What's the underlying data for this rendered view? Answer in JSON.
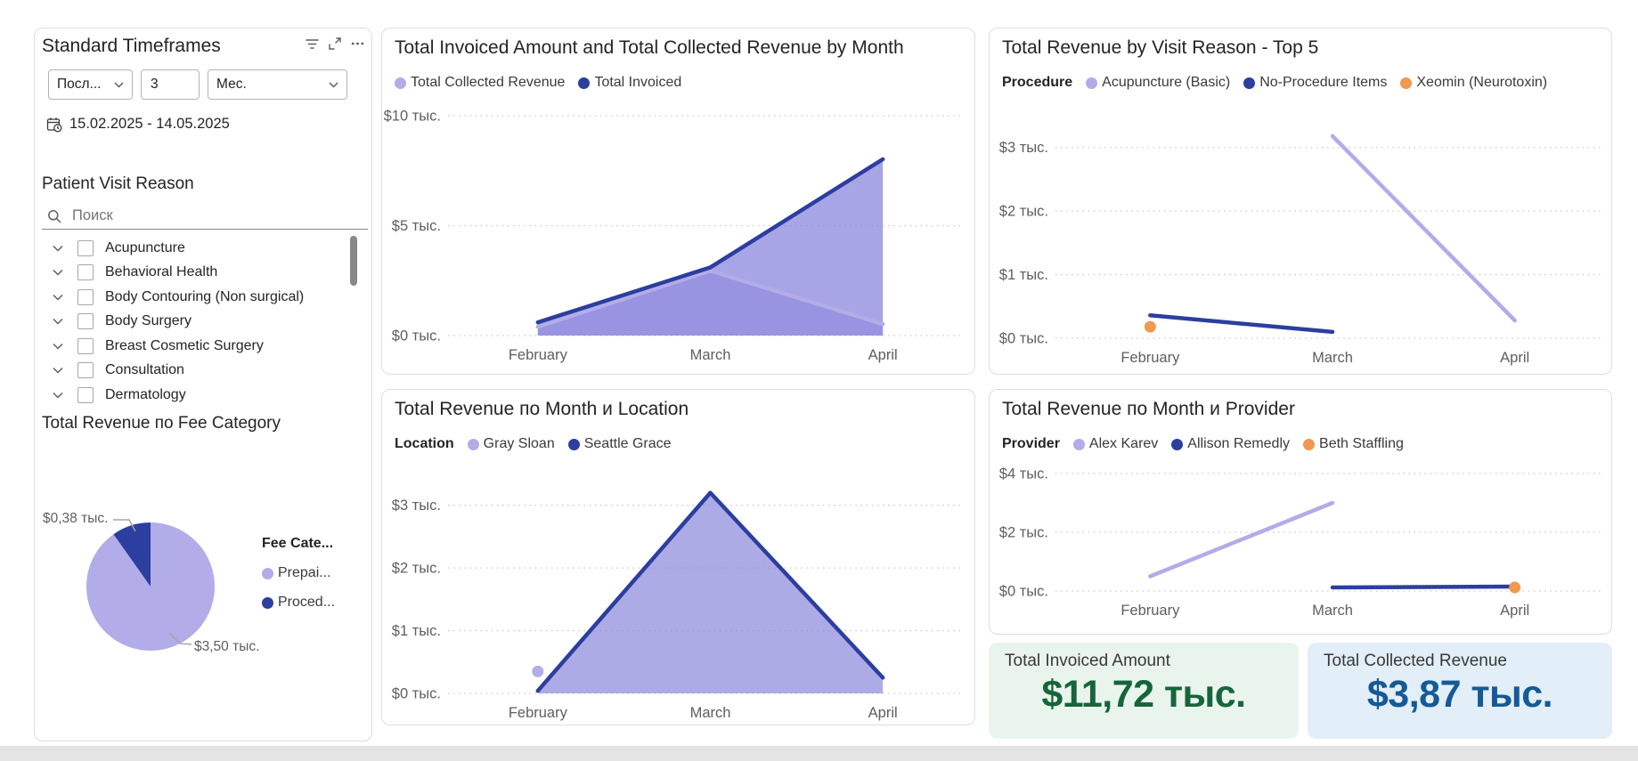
{
  "timeframe_panel": {
    "title": "Standard Timeframes",
    "header_icons": [
      "filter-icon",
      "focus-mode-icon",
      "more-options-icon"
    ],
    "period_dropdown": "Посл...",
    "period_count": "3",
    "period_unit": "Мес.",
    "date_range": "15.02.2025 - 14.05.2025"
  },
  "visit_reason_filter": {
    "title": "Patient Visit Reason",
    "search_placeholder": "Поиск",
    "items": [
      "Acupuncture",
      "Behavioral Health",
      "Body Contouring (Non surgical)",
      "Body Surgery",
      "Breast Cosmetic Surgery",
      "Consultation",
      "Dermatology"
    ]
  },
  "kpi_cards": [
    {
      "label": "Total Invoiced Amount",
      "value": "$11,72 тыс.",
      "value_color": "#17653b",
      "bg_color": "#e9f5ec"
    },
    {
      "label": "Total Collected Revenue",
      "value": "$3,87 тыс.",
      "value_color": "#155a96",
      "bg_color": "#e2eef8"
    }
  ],
  "colors": {
    "light_purple": "#b2ace8",
    "dark_blue": "#2c3e9f",
    "orange": "#f09950"
  },
  "chart_data": [
    {
      "type": "area",
      "title": "Total Invoiced Amount and Total Collected Revenue by Month",
      "legend_title": "",
      "categories": [
        "February",
        "March",
        "April"
      ],
      "ylim": [
        0,
        10
      ],
      "grid": "dotted",
      "legend_position": "top",
      "yticks": [
        {
          "v": 0,
          "label": "$0 тыс."
        },
        {
          "v": 5,
          "label": "$5 тыс."
        },
        {
          "v": 10,
          "label": "$10 тыс."
        }
      ],
      "series": [
        {
          "name": "Total Collected Revenue",
          "color": "#b2ace8",
          "area": true,
          "fill": "#b2ace8",
          "fill_opacity": 0.8,
          "values": [
            0.4,
            2.95,
            0.52
          ]
        },
        {
          "name": "Total Invoiced",
          "color": "#2c3e9f",
          "area": true,
          "fill": "#8a87dc",
          "fill_opacity": 0.75,
          "values": [
            0.6,
            3.1,
            8.02
          ]
        }
      ]
    },
    {
      "type": "line",
      "title": "Total Revenue by Visit Reason - Top 5",
      "legend_title": "Procedure",
      "categories": [
        "February",
        "March",
        "April"
      ],
      "ylim": [
        0,
        3.5
      ],
      "grid": "dotted",
      "legend_position": "top",
      "yticks": [
        {
          "v": 0,
          "label": "$0 тыс."
        },
        {
          "v": 1,
          "label": "$1 тыс."
        },
        {
          "v": 2,
          "label": "$2 тыс."
        },
        {
          "v": 3,
          "label": "$3 тыс."
        }
      ],
      "series": [
        {
          "name": "Acupuncture (Basic)",
          "color": "#b2ace8",
          "values": [
            null,
            3.18,
            0.28
          ]
        },
        {
          "name": "No-Procedure Items",
          "color": "#2c3e9f",
          "values": [
            0.36,
            0.1,
            null
          ]
        },
        {
          "name": "Xeomin (Neurotoxin)",
          "color": "#f09950",
          "values": [
            0.18,
            null,
            null
          ]
        }
      ]
    },
    {
      "type": "area",
      "title": "Total Revenue по Month и Location",
      "legend_title": "Location",
      "categories": [
        "February",
        "March",
        "April"
      ],
      "ylim": [
        0,
        3.45
      ],
      "grid": "dotted",
      "legend_position": "top",
      "yticks": [
        {
          "v": 0,
          "label": "$0 тыс."
        },
        {
          "v": 1,
          "label": "$1 тыс."
        },
        {
          "v": 2,
          "label": "$2 тыс."
        },
        {
          "v": 3,
          "label": "$3 тыс."
        }
      ],
      "series": [
        {
          "name": "Gray Sloan",
          "color": "#b2ace8",
          "values": [
            0.35,
            null,
            null
          ]
        },
        {
          "name": "Seattle Grace",
          "color": "#2c3e9f",
          "area": true,
          "fill": "#8a87dc",
          "fill_opacity": 0.7,
          "values": [
            0.04,
            3.2,
            0.25
          ]
        }
      ]
    },
    {
      "type": "line",
      "title": "Total Revenue по Month и Provider",
      "legend_title": "Provider",
      "categories": [
        "February",
        "March",
        "April"
      ],
      "ylim": [
        0,
        4
      ],
      "grid": "dotted",
      "legend_position": "top",
      "yticks": [
        {
          "v": 0,
          "label": "$0 тыс."
        },
        {
          "v": 2,
          "label": "$2 тыс."
        },
        {
          "v": 4,
          "label": "$4 тыс."
        }
      ],
      "series": [
        {
          "name": "Alex Karev",
          "color": "#b2ace8",
          "values": [
            0.5,
            3.0,
            null
          ]
        },
        {
          "name": "Allison Remedly",
          "color": "#2c3e9f",
          "values": [
            null,
            0.12,
            0.15
          ]
        },
        {
          "name": "Beth Staffling",
          "color": "#f09950",
          "values": [
            null,
            null,
            0.12
          ]
        }
      ]
    },
    {
      "type": "pie",
      "title": "Total Revenue по Fee Category",
      "legend_title": "Fee Cate...",
      "slices": [
        {
          "name": "Prepai...",
          "color": "#b2ace8",
          "value": 3.5,
          "label": "$3,50 тыс."
        },
        {
          "name": "Proced...",
          "color": "#2c3e9f",
          "value": 0.38,
          "label": "$0,38 тыс."
        }
      ]
    }
  ]
}
